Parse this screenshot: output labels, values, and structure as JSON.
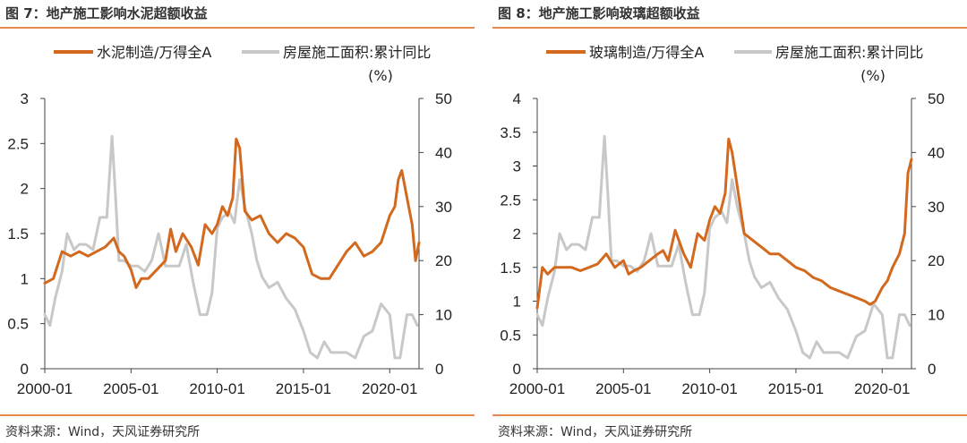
{
  "panels": [
    {
      "title": "图 7：地产施工影响水泥超额收益",
      "source": "资料来源：Wind，天风证券研究所",
      "legend": [
        "水泥制造/万得全A",
        "房屋施工面积:累计同比"
      ],
      "right_unit": "(%)",
      "colors": {
        "primary": "#d2691e",
        "secondary": "#c8c8c8",
        "rule": "#e58b4f"
      }
    },
    {
      "title": "图 8：地产施工影响玻璃超额收益",
      "source": "资料来源：Wind，天风证券研究所",
      "legend": [
        "玻璃制造/万得全A",
        "房屋施工面积:累计同比"
      ],
      "right_unit": "(%)",
      "colors": {
        "primary": "#d2691e",
        "secondary": "#c8c8c8",
        "rule": "#e58b4f"
      }
    }
  ],
  "chart_data": [
    {
      "type": "line",
      "title": "",
      "xlabel": "",
      "ylabel": "",
      "x_ticks": [
        "2000-01",
        "2005-01",
        "2010-01",
        "2015-01",
        "2020-01"
      ],
      "x_range": [
        2000.0,
        2021.7
      ],
      "y_left_range": [
        0,
        3
      ],
      "y_left_ticks": [
        "0",
        "0.5",
        "1",
        "1.5",
        "2",
        "2.5",
        "3"
      ],
      "y_right_range": [
        0,
        50
      ],
      "y_right_ticks": [
        "0",
        "10",
        "20",
        "30",
        "40",
        "50"
      ],
      "grid": false,
      "legend_position": "top",
      "series": [
        {
          "name": "水泥制造/万得全A",
          "axis": "left",
          "color": "#d2691e",
          "x": [
            2000.0,
            2000.5,
            2001.0,
            2001.5,
            2002.0,
            2002.5,
            2003.0,
            2003.5,
            2004.0,
            2004.3,
            2004.6,
            2005.0,
            2005.3,
            2005.6,
            2006.0,
            2006.5,
            2007.0,
            2007.3,
            2007.6,
            2008.0,
            2008.5,
            2008.9,
            2009.3,
            2009.7,
            2010.0,
            2010.3,
            2010.6,
            2010.9,
            2011.1,
            2011.3,
            2011.6,
            2012.0,
            2012.5,
            2013.0,
            2013.5,
            2014.0,
            2014.5,
            2015.0,
            2015.5,
            2016.0,
            2016.5,
            2017.0,
            2017.5,
            2018.0,
            2018.5,
            2019.0,
            2019.5,
            2020.0,
            2020.3,
            2020.5,
            2020.7,
            2021.0,
            2021.3,
            2021.5,
            2021.7
          ],
          "y": [
            0.95,
            1.0,
            1.3,
            1.25,
            1.3,
            1.25,
            1.3,
            1.35,
            1.45,
            1.3,
            1.25,
            1.1,
            0.9,
            1.0,
            1.0,
            1.1,
            1.2,
            1.55,
            1.3,
            1.5,
            1.35,
            1.15,
            1.6,
            1.5,
            1.6,
            1.8,
            1.7,
            1.9,
            2.55,
            2.45,
            1.75,
            1.65,
            1.7,
            1.5,
            1.4,
            1.5,
            1.45,
            1.35,
            1.05,
            1.0,
            1.0,
            1.15,
            1.3,
            1.4,
            1.25,
            1.3,
            1.4,
            1.7,
            1.8,
            2.1,
            2.2,
            1.9,
            1.6,
            1.2,
            1.4
          ]
        },
        {
          "name": "房屋施工面积:累计同比",
          "axis": "right",
          "color": "#c8c8c8",
          "x": [
            2000.0,
            2000.3,
            2000.6,
            2001.0,
            2001.3,
            2001.7,
            2002.0,
            2002.4,
            2002.8,
            2003.2,
            2003.6,
            2003.9,
            2004.1,
            2004.3,
            2004.6,
            2005.0,
            2005.4,
            2005.8,
            2006.2,
            2006.6,
            2007.0,
            2007.4,
            2007.8,
            2008.2,
            2008.6,
            2009.0,
            2009.4,
            2009.7,
            2010.0,
            2010.3,
            2010.7,
            2011.0,
            2011.3,
            2011.6,
            2012.0,
            2012.3,
            2012.6,
            2013.0,
            2013.5,
            2014.0,
            2014.5,
            2015.0,
            2015.4,
            2015.8,
            2016.2,
            2016.6,
            2017.0,
            2017.5,
            2018.0,
            2018.5,
            2019.0,
            2019.5,
            2020.0,
            2020.3,
            2020.6,
            2021.0,
            2021.3,
            2021.6
          ],
          "y": [
            10,
            8,
            13,
            18,
            25,
            22,
            23,
            23,
            22,
            28,
            28,
            43,
            32,
            20,
            20,
            19,
            19,
            18,
            20,
            25,
            19,
            19,
            19,
            23,
            16,
            10,
            10,
            14,
            26,
            28,
            29,
            27,
            35,
            30,
            25,
            20,
            17,
            15,
            16,
            13,
            11,
            7,
            3,
            2,
            5,
            3,
            3,
            3,
            2,
            6,
            7,
            12,
            10,
            2,
            2,
            10,
            10,
            8
          ]
        }
      ]
    },
    {
      "type": "line",
      "title": "",
      "xlabel": "",
      "ylabel": "",
      "x_ticks": [
        "2000-01",
        "2005-01",
        "2010-01",
        "2015-01",
        "2020-01"
      ],
      "x_range": [
        2000.0,
        2021.7
      ],
      "y_left_range": [
        0,
        4
      ],
      "y_left_ticks": [
        "0",
        "0.5",
        "1",
        "1.5",
        "2",
        "2.5",
        "3",
        "3.5",
        "4"
      ],
      "y_right_range": [
        0,
        50
      ],
      "y_right_ticks": [
        "0",
        "10",
        "20",
        "30",
        "40",
        "50"
      ],
      "grid": false,
      "legend_position": "top",
      "series": [
        {
          "name": "玻璃制造/万得全A",
          "axis": "left",
          "color": "#d2691e",
          "x": [
            2000.0,
            2000.3,
            2000.6,
            2001.0,
            2001.5,
            2002.0,
            2002.5,
            2003.0,
            2003.5,
            2004.0,
            2004.5,
            2005.0,
            2005.3,
            2005.6,
            2006.0,
            2006.5,
            2007.0,
            2007.3,
            2007.6,
            2008.0,
            2008.5,
            2008.9,
            2009.3,
            2009.7,
            2010.0,
            2010.3,
            2010.6,
            2010.9,
            2011.1,
            2011.3,
            2011.6,
            2012.0,
            2012.5,
            2013.0,
            2013.5,
            2014.0,
            2014.5,
            2015.0,
            2015.5,
            2016.0,
            2016.5,
            2017.0,
            2017.5,
            2018.0,
            2018.5,
            2019.0,
            2019.3,
            2019.6,
            2020.0,
            2020.3,
            2020.6,
            2021.0,
            2021.3,
            2021.5,
            2021.7
          ],
          "y": [
            0.9,
            1.5,
            1.4,
            1.5,
            1.5,
            1.5,
            1.45,
            1.5,
            1.55,
            1.7,
            1.5,
            1.6,
            1.4,
            1.45,
            1.5,
            1.6,
            1.7,
            1.75,
            1.6,
            2.05,
            1.7,
            1.5,
            2.0,
            1.9,
            2.2,
            2.4,
            2.3,
            2.6,
            3.4,
            3.2,
            2.7,
            2.0,
            1.9,
            1.8,
            1.7,
            1.7,
            1.6,
            1.5,
            1.45,
            1.35,
            1.3,
            1.2,
            1.15,
            1.1,
            1.05,
            1.0,
            0.95,
            1.0,
            1.2,
            1.3,
            1.5,
            1.7,
            2.0,
            2.9,
            3.1
          ]
        },
        {
          "name": "房屋施工面积:累计同比",
          "axis": "right",
          "color": "#c8c8c8",
          "x": [
            2000.0,
            2000.3,
            2000.6,
            2001.0,
            2001.3,
            2001.7,
            2002.0,
            2002.4,
            2002.8,
            2003.2,
            2003.6,
            2003.9,
            2004.1,
            2004.3,
            2004.6,
            2005.0,
            2005.4,
            2005.8,
            2006.2,
            2006.6,
            2007.0,
            2007.4,
            2007.8,
            2008.2,
            2008.6,
            2009.0,
            2009.4,
            2009.7,
            2010.0,
            2010.3,
            2010.7,
            2011.0,
            2011.3,
            2011.6,
            2012.0,
            2012.3,
            2012.6,
            2013.0,
            2013.5,
            2014.0,
            2014.5,
            2015.0,
            2015.4,
            2015.8,
            2016.2,
            2016.6,
            2017.0,
            2017.5,
            2018.0,
            2018.5,
            2019.0,
            2019.5,
            2020.0,
            2020.3,
            2020.6,
            2021.0,
            2021.3,
            2021.6
          ],
          "y": [
            10,
            8,
            13,
            18,
            25,
            22,
            23,
            23,
            22,
            28,
            28,
            43,
            32,
            20,
            20,
            19,
            19,
            18,
            20,
            25,
            19,
            19,
            19,
            23,
            16,
            10,
            10,
            14,
            26,
            28,
            29,
            27,
            35,
            30,
            25,
            20,
            17,
            15,
            16,
            13,
            11,
            7,
            3,
            2,
            5,
            3,
            3,
            3,
            2,
            6,
            7,
            12,
            10,
            2,
            2,
            10,
            10,
            8
          ]
        }
      ]
    }
  ]
}
